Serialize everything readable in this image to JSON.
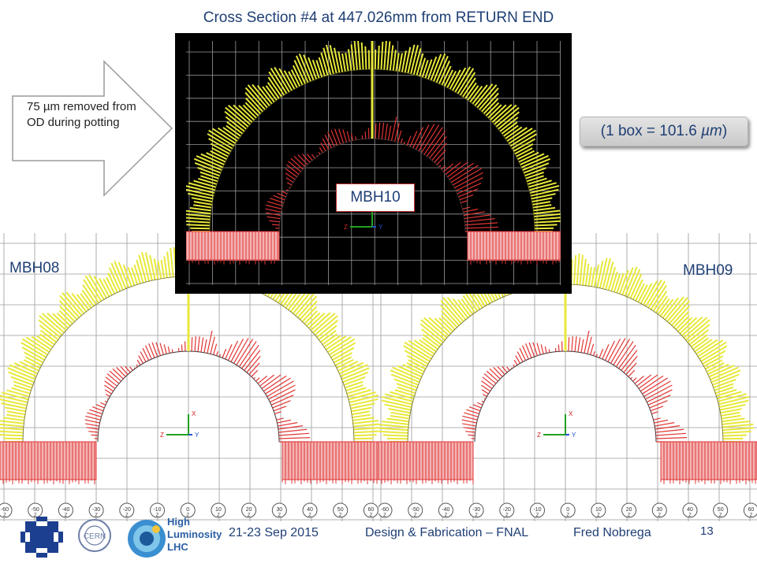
{
  "slide": {
    "title": "Cross Section #4 at 447.026mm from RETURN END",
    "arrow_note": "75 µm removed from OD during potting",
    "scale_note_prefix": "(1 box = 101.6 ",
    "scale_note_unit": "µm",
    "scale_note_suffix": ")",
    "page_number": "13"
  },
  "scans": {
    "inset_label": "MBH10",
    "left_label": "MBH08",
    "right_label": "MBH09",
    "axis_tick_labels": [
      "-60",
      "-50",
      "-40",
      "-30",
      "-20",
      "-10",
      "0",
      "10",
      "20",
      "30",
      "40",
      "50",
      "60"
    ],
    "axis_letters": {
      "x": "X",
      "y": "Y",
      "z": "Z"
    }
  },
  "footer": {
    "date": "21-23 Sep 2015",
    "event": "Design & Fabrication – FNAL",
    "author": "Fred Nobrega",
    "logo_text_lines": [
      "High",
      "Luminosity",
      "LHC"
    ],
    "cern_logo_text": "CERN"
  },
  "colors": {
    "title_text": "#1f3f75",
    "deviation_yellow": "#e8e83a",
    "deviation_red": "#e23434",
    "grid": "#9a9a9a",
    "fermilab_logo": "#1c3f8f",
    "hilumi_logo": "#3a8fd0"
  }
}
